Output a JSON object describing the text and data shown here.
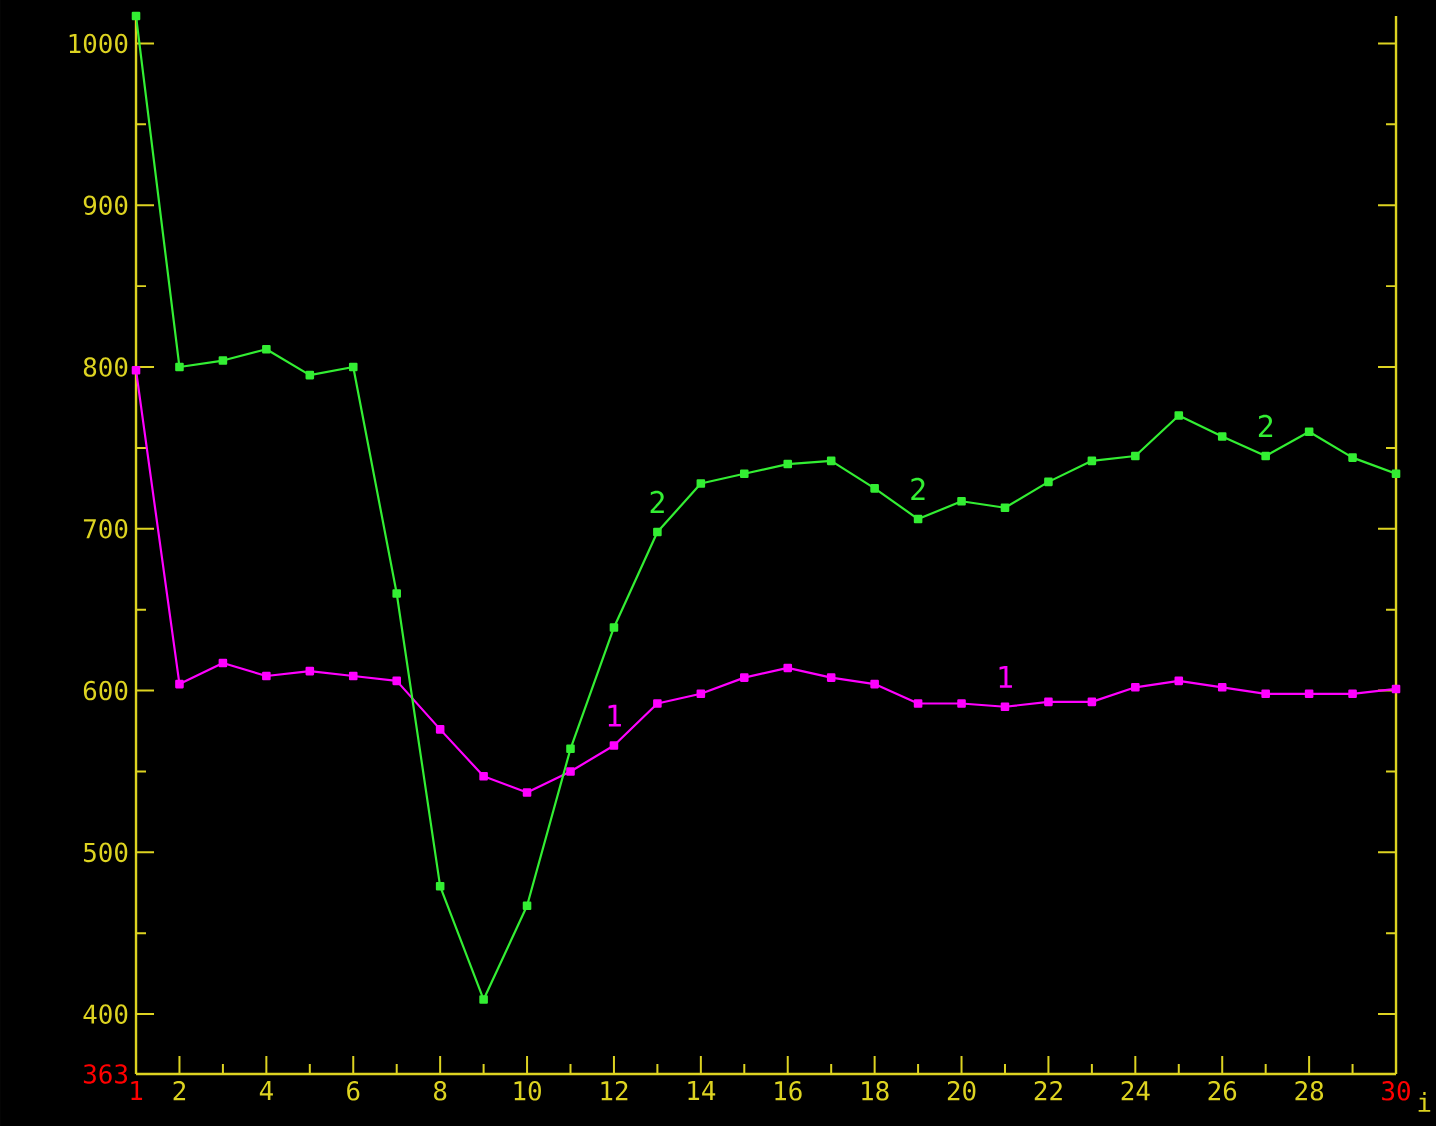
{
  "chart_data": {
    "type": "line",
    "xlabel": "i",
    "marker": "square",
    "line_style": "solid",
    "grid": false,
    "x": [
      1,
      2,
      3,
      4,
      5,
      6,
      7,
      8,
      9,
      10,
      11,
      12,
      13,
      14,
      15,
      16,
      17,
      18,
      19,
      20,
      21,
      22,
      23,
      24,
      25,
      26,
      27,
      28,
      29,
      30
    ],
    "series": [
      {
        "name": "1",
        "color": "#ff00ff",
        "values": [
          798,
          604,
          617,
          609,
          612,
          609,
          606,
          576,
          547,
          537,
          550,
          566,
          592,
          598,
          608,
          614,
          608,
          604,
          592,
          592,
          590,
          593,
          593,
          602,
          606,
          602,
          598,
          598,
          598,
          601
        ]
      },
      {
        "name": "2",
        "color": "#33ee33",
        "values": [
          1017,
          800,
          804,
          811,
          795,
          800,
          660,
          479,
          409,
          467,
          564,
          639,
          698,
          728,
          734,
          740,
          742,
          725,
          706,
          717,
          713,
          729,
          742,
          745,
          770,
          757,
          745,
          760,
          744,
          734
        ]
      }
    ],
    "xlim": [
      1,
      30
    ],
    "ylim": [
      363,
      1017
    ],
    "xticks": [
      1,
      2,
      {
        "value": 3,
        "label": null
      },
      4,
      {
        "value": 5,
        "label": null
      },
      6,
      {
        "value": 7,
        "label": null
      },
      8,
      {
        "value": 9,
        "label": null
      },
      10,
      {
        "value": 11,
        "label": null
      },
      12,
      {
        "value": 13,
        "label": null
      },
      14,
      {
        "value": 15,
        "label": null
      },
      16,
      {
        "value": 17,
        "label": null
      },
      18,
      {
        "value": 19,
        "label": null
      },
      20,
      {
        "value": 21,
        "label": null
      },
      22,
      {
        "value": 23,
        "label": null
      },
      24,
      {
        "value": 25,
        "label": null
      },
      26,
      {
        "value": 27,
        "label": null
      },
      28,
      {
        "value": 29,
        "label": null
      },
      30
    ],
    "yticks": [
      363,
      400,
      {
        "value": 450,
        "label": null
      },
      500,
      {
        "value": 550,
        "label": null
      },
      600,
      {
        "value": 650,
        "label": null
      },
      700,
      {
        "value": 750,
        "label": null
      },
      800,
      {
        "value": 850,
        "label": null
      },
      900,
      {
        "value": 950,
        "label": null
      },
      1000
    ]
  }
}
